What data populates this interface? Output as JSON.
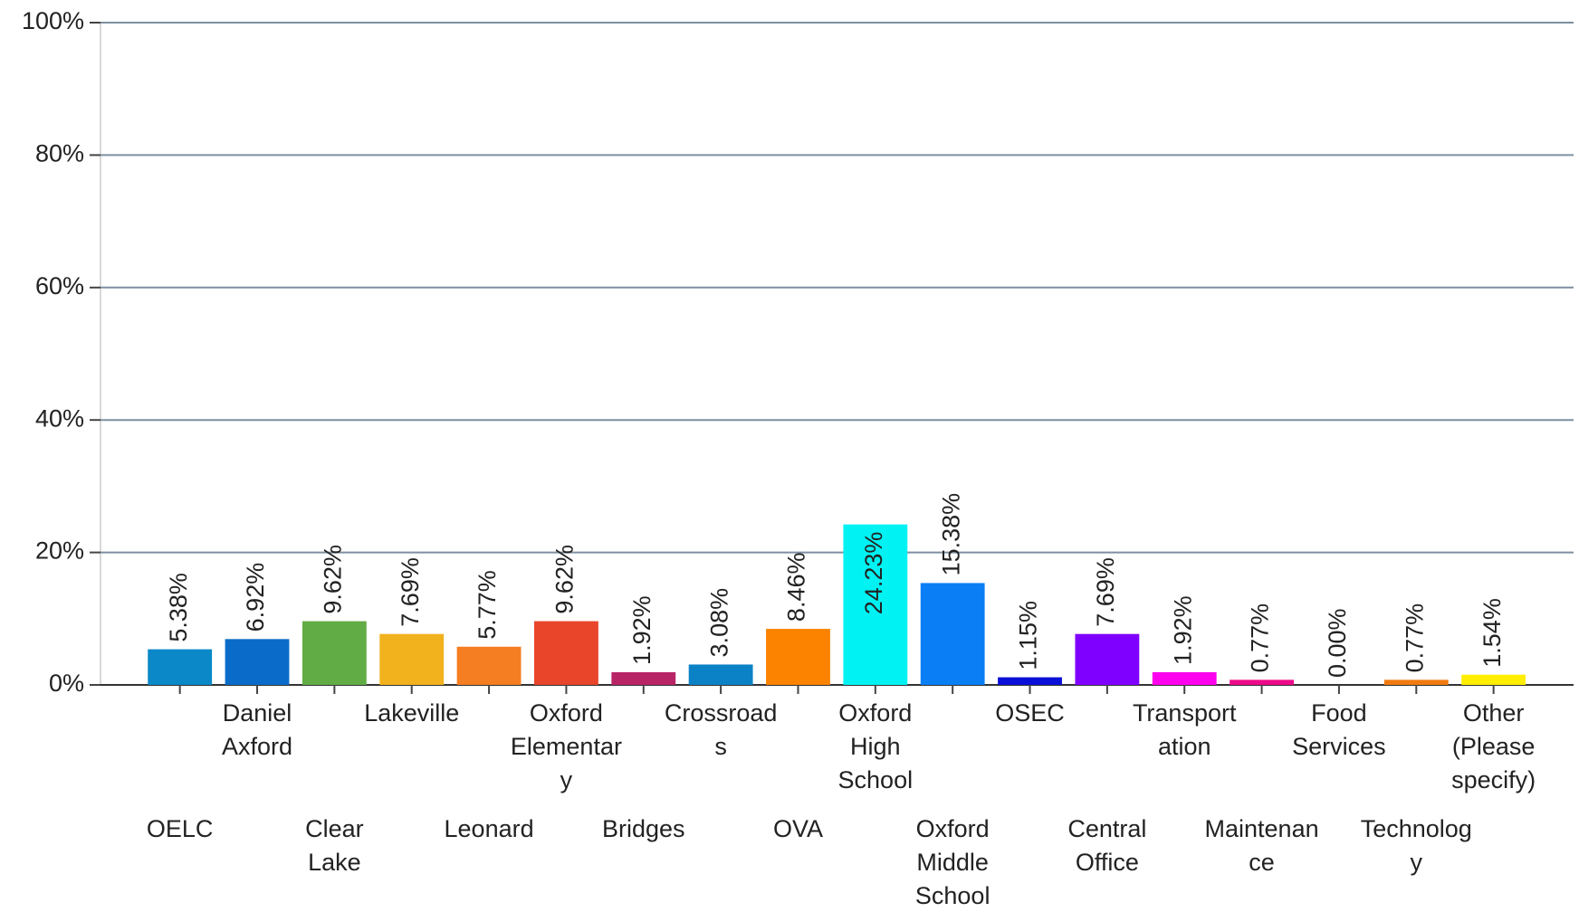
{
  "chart_data": {
    "type": "bar",
    "categories": [
      "OELC",
      "Daniel Axford",
      "Clear Lake",
      "Lakeville",
      "Leonard",
      "Oxford Elementary",
      "Bridges",
      "Crossroads",
      "OVA",
      "Oxford High School",
      "Oxford Middle School",
      "OSEC",
      "Central Office",
      "Transportation",
      "Maintenance",
      "Food Services",
      "Technology",
      "Other (Please specify)"
    ],
    "values": [
      5.38,
      6.92,
      9.62,
      7.69,
      5.77,
      9.62,
      1.92,
      3.08,
      8.46,
      24.23,
      15.38,
      1.15,
      7.69,
      1.92,
      0.77,
      0.0,
      0.77,
      1.54
    ],
    "value_labels": [
      "5.38%",
      "6.92%",
      "9.62%",
      "7.69%",
      "5.77%",
      "9.62%",
      "1.92%",
      "3.08%",
      "8.46%",
      "24.23%",
      "15.38%",
      "1.15%",
      "7.69%",
      "1.92%",
      "0.77%",
      "0.00%",
      "0.77%",
      "1.54%"
    ],
    "colors": [
      "#0a88c8",
      "#0a6cc8",
      "#62ac45",
      "#f2b21d",
      "#f57e22",
      "#e8452a",
      "#b82567",
      "#0c82c6",
      "#fb8300",
      "#00f2f2",
      "#0a7ff5",
      "#0a10d8",
      "#8000ff",
      "#ff00ee",
      "#ee0a8a",
      "#2a9fd8",
      "#f27a10",
      "#ffee00"
    ],
    "ylim": [
      0,
      100
    ],
    "yticks": [
      {
        "value": 0,
        "label": "0%"
      },
      {
        "value": 20,
        "label": "20%"
      },
      {
        "value": 40,
        "label": "40%"
      },
      {
        "value": 60,
        "label": "60%"
      },
      {
        "value": 80,
        "label": "80%"
      },
      {
        "value": 100,
        "label": "100%"
      }
    ],
    "grid": true
  }
}
